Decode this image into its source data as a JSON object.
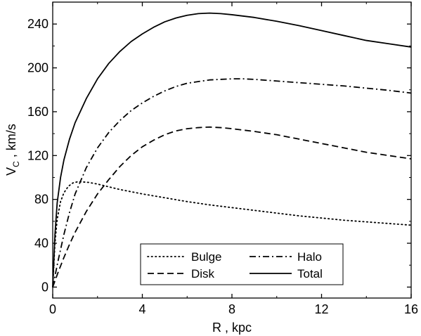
{
  "chart_data": {
    "type": "line",
    "title": "",
    "xlabel": "R , kpc",
    "ylabel": {
      "main": "V",
      "sub": "C",
      "rest": " , km/s"
    },
    "xlim": [
      0,
      16
    ],
    "ylim": [
      -10,
      260
    ],
    "xticks": [
      0,
      4,
      8,
      12,
      16
    ],
    "xtick_labels": [
      "0",
      "4",
      "8",
      "12",
      "16"
    ],
    "yticks": [
      0,
      40,
      80,
      120,
      160,
      200,
      240
    ],
    "ytick_labels": [
      "0",
      "40",
      "80",
      "120",
      "160",
      "200",
      "240"
    ],
    "grid": false,
    "legend_position": "bottom-center",
    "series": [
      {
        "name": "Bulge",
        "style": "dotted",
        "x": [
          0,
          0.1,
          0.2,
          0.35,
          0.5,
          0.7,
          0.9,
          1.1,
          1.3,
          1.6,
          2,
          2.5,
          3,
          4,
          5,
          6,
          7,
          8,
          9,
          10,
          11,
          12,
          13,
          14,
          15,
          16
        ],
        "y": [
          0,
          40,
          62,
          78,
          86,
          92,
          95,
          96,
          96,
          95.5,
          94,
          91.5,
          89,
          85,
          81.5,
          78,
          75,
          72.5,
          70,
          67.5,
          65,
          63,
          61,
          59.5,
          58,
          56.5
        ]
      },
      {
        "name": "Disk",
        "style": "dashed",
        "x": [
          0,
          0.25,
          0.5,
          0.75,
          1,
          1.5,
          2,
          2.5,
          3,
          3.5,
          4,
          4.5,
          5,
          5.5,
          6,
          6.5,
          7,
          7.5,
          8,
          9,
          10,
          11,
          12,
          13,
          14,
          15,
          16
        ],
        "y": [
          0,
          14,
          27,
          39,
          50,
          69,
          85,
          98,
          110,
          120,
          128,
          134,
          139,
          142.5,
          144.5,
          145.5,
          146,
          145.5,
          144.5,
          142,
          139,
          135,
          131,
          127,
          123,
          120,
          117
        ]
      },
      {
        "name": "Halo",
        "style": "dashdot",
        "x": [
          0,
          0.25,
          0.5,
          0.75,
          1,
          1.5,
          2,
          2.5,
          3,
          3.5,
          4,
          4.5,
          5,
          5.5,
          6,
          7,
          8,
          8.5,
          9,
          10,
          11,
          12,
          13,
          14,
          15,
          16
        ],
        "y": [
          0,
          25,
          48,
          68,
          85,
          109,
          127,
          141,
          152,
          161,
          168,
          174,
          179,
          183,
          186,
          189,
          190,
          190,
          189.5,
          188,
          186.5,
          185,
          183.5,
          181.5,
          179.5,
          177
        ]
      },
      {
        "name": "Total",
        "style": "solid",
        "x": [
          0,
          0.1,
          0.2,
          0.35,
          0.5,
          0.75,
          1,
          1.5,
          2,
          2.5,
          3,
          3.5,
          4,
          4.5,
          5,
          5.5,
          6,
          6.5,
          7,
          7.5,
          8,
          9,
          10,
          11,
          12,
          13,
          14,
          15,
          16
        ],
        "y": [
          0,
          48,
          77,
          100,
          116,
          135,
          150,
          172,
          190,
          204,
          215,
          224,
          231,
          237,
          242,
          245.5,
          248,
          249.5,
          250,
          249.5,
          248.5,
          246,
          242.5,
          238.5,
          234,
          229.5,
          225,
          222,
          219
        ]
      }
    ]
  }
}
